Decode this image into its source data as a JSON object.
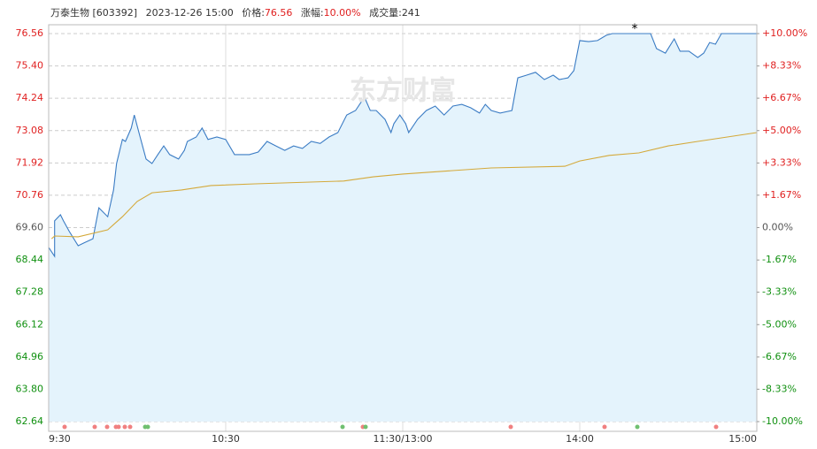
{
  "header": {
    "name": "万泰生物",
    "code": "[603392]",
    "datetime": "2023-12-26 15:00",
    "price_label": "价格:",
    "price": "76.56",
    "change_label": "涨幅:",
    "change": "10.00%",
    "volume_label": "成交量:",
    "volume": "241"
  },
  "chart_data": {
    "type": "line",
    "watermark": "东方财富",
    "xlim": [
      0,
      240
    ],
    "xticks": [
      {
        "value": 0,
        "label": "9:30"
      },
      {
        "value": 60,
        "label": "10:30"
      },
      {
        "value": 120,
        "label": "11:30/13:00"
      },
      {
        "value": 180,
        "label": "14:00"
      },
      {
        "value": 240,
        "label": "15:00"
      }
    ],
    "ylim": [
      62.64,
      76.56
    ],
    "yticks": [
      62.64,
      {
        "value": 63.8,
        "label": "63.80"
      },
      64.96,
      66.12,
      67.28,
      68.44,
      {
        "value": 69.6,
        "label": "69.60"
      },
      70.76,
      71.92,
      73.08,
      74.24,
      {
        "value": 75.4,
        "label": "75.40"
      },
      76.56
    ],
    "y2lim": [
      -10,
      10
    ],
    "y2ticks": [
      {
        "value": -10,
        "label": "-10.00%"
      },
      {
        "value": -8.33,
        "label": "-8.33%"
      },
      {
        "value": -6.67,
        "label": "-6.67%"
      },
      {
        "value": -5,
        "label": "-5.00%"
      },
      {
        "value": -3.33,
        "label": "-3.33%"
      },
      {
        "value": -1.67,
        "label": "-1.67%"
      },
      {
        "value": 0,
        "label": "0.00%"
      },
      {
        "value": 1.67,
        "label": "+1.67%"
      },
      {
        "value": 3.33,
        "label": "+3.33%"
      },
      {
        "value": 5,
        "label": "+5.00%"
      },
      {
        "value": 6.67,
        "label": "+6.67%"
      },
      {
        "value": 8.33,
        "label": "+8.33%"
      },
      {
        "value": 10,
        "label": "+10.00%"
      }
    ],
    "up_color": "#e02020",
    "down_color": "#109010",
    "flat_color": "#555555",
    "series": [
      {
        "color": "#3b7cc4",
        "fill": "#e4f3fc",
        "x": [
          0,
          2,
          2,
          4,
          5,
          7,
          10,
          12,
          15,
          17,
          20,
          22,
          23,
          25,
          26,
          28,
          29,
          31,
          33,
          35,
          37,
          39,
          41,
          44,
          46,
          47,
          50,
          52,
          54,
          57,
          60,
          63,
          68,
          71,
          74,
          77,
          80,
          83,
          86,
          89,
          92,
          95,
          98,
          101,
          104,
          107,
          109,
          111,
          114,
          116,
          117,
          119,
          121,
          122,
          125,
          128,
          131,
          134,
          137,
          140,
          143,
          146,
          148,
          150,
          153,
          157,
          159,
          162,
          165,
          168,
          171,
          173,
          176,
          178,
          180,
          183,
          186,
          189,
          191,
          204,
          206,
          209,
          212,
          214,
          217,
          220,
          222,
          224,
          226,
          228,
          240
        ],
        "values": [
          68.89,
          68.57,
          69.84,
          70.06,
          69.84,
          69.46,
          68.95,
          69.05,
          69.2,
          70.31,
          69.99,
          70.95,
          71.9,
          72.76,
          72.69,
          73.17,
          73.64,
          72.85,
          72.06,
          71.9,
          72.22,
          72.53,
          72.22,
          72.06,
          72.37,
          72.69,
          72.85,
          73.17,
          72.76,
          72.85,
          72.76,
          72.22,
          72.22,
          72.31,
          72.69,
          72.53,
          72.37,
          72.53,
          72.44,
          72.69,
          72.62,
          72.85,
          73.01,
          73.64,
          73.8,
          74.28,
          73.8,
          73.8,
          73.48,
          73.01,
          73.33,
          73.64,
          73.33,
          73.01,
          73.48,
          73.8,
          73.96,
          73.64,
          73.96,
          74.02,
          73.9,
          73.71,
          74.02,
          73.8,
          73.71,
          73.8,
          74.97,
          75.07,
          75.17,
          74.91,
          75.07,
          74.91,
          74.97,
          75.23,
          76.31,
          76.27,
          76.31,
          76.5,
          76.56,
          76.56,
          76.02,
          75.86,
          76.37,
          75.93,
          75.93,
          75.7,
          75.86,
          76.24,
          76.18,
          76.56,
          76.56
        ]
      },
      {
        "color": "#d4a93a",
        "x": [
          1,
          2,
          10,
          20,
          25,
          30,
          35,
          45,
          55,
          70,
          100,
          110,
          120,
          150,
          175,
          180,
          190,
          200,
          210,
          220,
          240
        ],
        "values": [
          69.2,
          69.3,
          69.27,
          69.52,
          69.99,
          70.54,
          70.85,
          70.95,
          71.11,
          71.17,
          71.27,
          71.42,
          71.52,
          71.74,
          71.8,
          71.99,
          72.19,
          72.28,
          72.53,
          72.69,
          73.01
        ]
      }
    ]
  }
}
